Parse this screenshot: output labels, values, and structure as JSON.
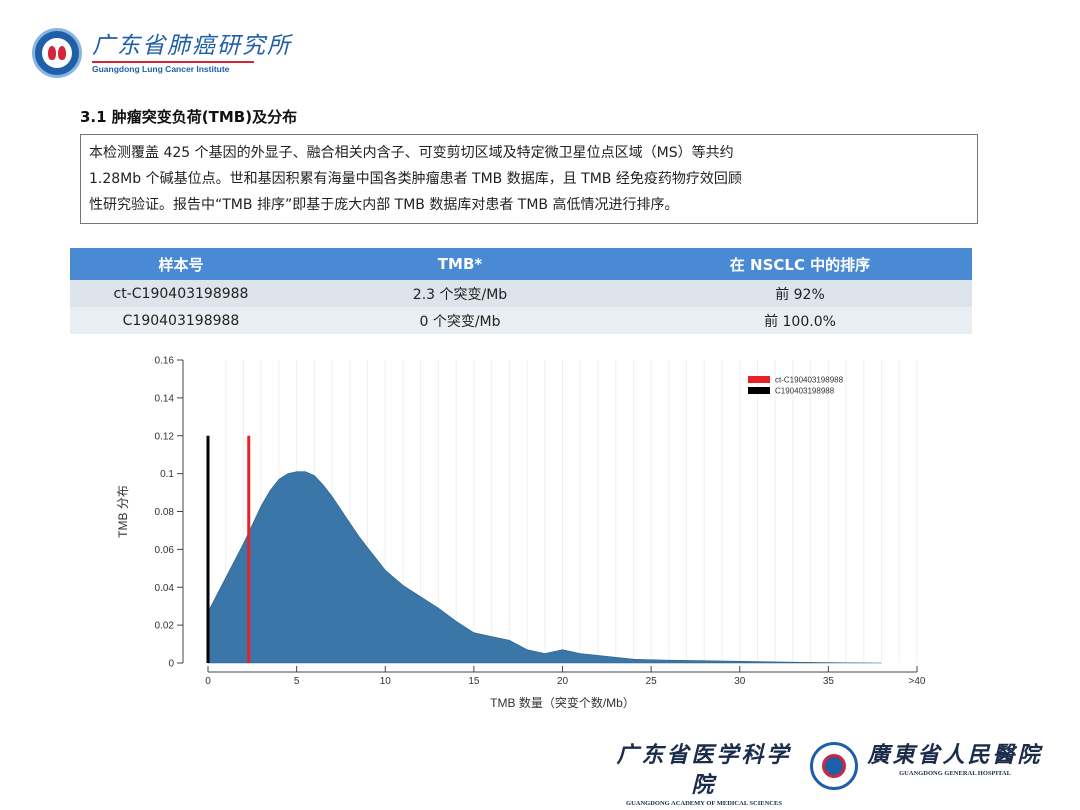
{
  "header": {
    "logo_cn": "广东省肺癌研究所",
    "logo_en": "Guangdong Lung Cancer Institute"
  },
  "section": {
    "title": "3.1 肿瘤突变负荷(TMB)及分布",
    "description_lines": [
      "本检测覆盖 425 个基因的外显子、融合相关内含子、可变剪切区域及特定微卫星位点区域（MS）等共约",
      "1.28Mb 个碱基位点。世和基因积累有海量中国各类肿瘤患者 TMB 数据库，且 TMB 经免疫药物疗效回顾",
      "性研究验证。报告中“TMB 排序”即基于庞大内部 TMB 数据库对患者 TMB 高低情况进行排序。"
    ]
  },
  "table": {
    "headers": [
      "样本号",
      "TMB*",
      "在 NSCLC 中的排序"
    ],
    "rows": [
      [
        "ct-C190403198988",
        "2.3 个突变/Mb",
        "前 92%"
      ],
      [
        "C190403198988",
        "0 个突变/Mb",
        "前 100.0%"
      ]
    ]
  },
  "chart_data": {
    "type": "area",
    "title": "",
    "xlabel": "TMB 数量（突变个数/Mb）",
    "ylabel": "TMB 分布",
    "xlim": [
      0,
      40
    ],
    "ylim": [
      0,
      0.16
    ],
    "x_ticks": [
      {
        "v": 0,
        "label": "0"
      },
      {
        "v": 5,
        "label": "5"
      },
      {
        "v": 10,
        "label": "10"
      },
      {
        "v": 15,
        "label": "15"
      },
      {
        "v": 20,
        "label": "20"
      },
      {
        "v": 25,
        "label": "25"
      },
      {
        "v": 30,
        "label": "30"
      },
      {
        "v": 35,
        "label": "35"
      },
      {
        "v": 40,
        "label": ">40"
      }
    ],
    "y_ticks": [
      {
        "v": 0,
        "label": "0"
      },
      {
        "v": 0.02,
        "label": "0.02"
      },
      {
        "v": 0.04,
        "label": "0.04"
      },
      {
        "v": 0.06,
        "label": "0.06"
      },
      {
        "v": 0.08,
        "label": "0.08"
      },
      {
        "v": 0.1,
        "label": "0.1"
      },
      {
        "v": 0.12,
        "label": "0.12"
      },
      {
        "v": 0.14,
        "label": "0.14"
      },
      {
        "v": 0.16,
        "label": "0.16"
      }
    ],
    "density": {
      "color": "#3a77a8",
      "x": [
        0,
        0.5,
        1,
        1.5,
        2,
        2.5,
        3,
        3.5,
        4,
        4.5,
        5,
        5.5,
        6,
        6.5,
        7,
        7.5,
        8,
        8.5,
        9,
        9.5,
        10,
        11,
        12,
        13,
        14,
        15,
        16,
        17,
        18,
        19,
        20,
        21,
        22,
        24,
        26,
        28,
        30,
        32,
        34,
        36,
        38
      ],
      "y": [
        0.027,
        0.036,
        0.045,
        0.054,
        0.063,
        0.073,
        0.083,
        0.091,
        0.097,
        0.1,
        0.101,
        0.101,
        0.099,
        0.094,
        0.088,
        0.081,
        0.074,
        0.067,
        0.061,
        0.055,
        0.049,
        0.041,
        0.035,
        0.029,
        0.022,
        0.016,
        0.014,
        0.012,
        0.007,
        0.005,
        0.007,
        0.005,
        0.004,
        0.002,
        0.0015,
        0.0012,
        0.0009,
        0.0006,
        0.0003,
        0.0001,
        0
      ]
    },
    "markers": [
      {
        "name": "ct-C190403198988",
        "x": 2.3,
        "y_top": 0.12,
        "color": "#e8202a"
      },
      {
        "name": "C190403198988",
        "x": 0,
        "y_top": 0.12,
        "color": "#000000"
      }
    ],
    "legend_position": "top-right"
  },
  "footer": {
    "left_cn": "广东省医学科学院",
    "left_en": "GUANGDONG ACADEMY OF MEDICAL SCIENCES",
    "right_cn": "廣東省人民醫院",
    "right_en": "GUANGDONG GENERAL HOSPITAL"
  }
}
